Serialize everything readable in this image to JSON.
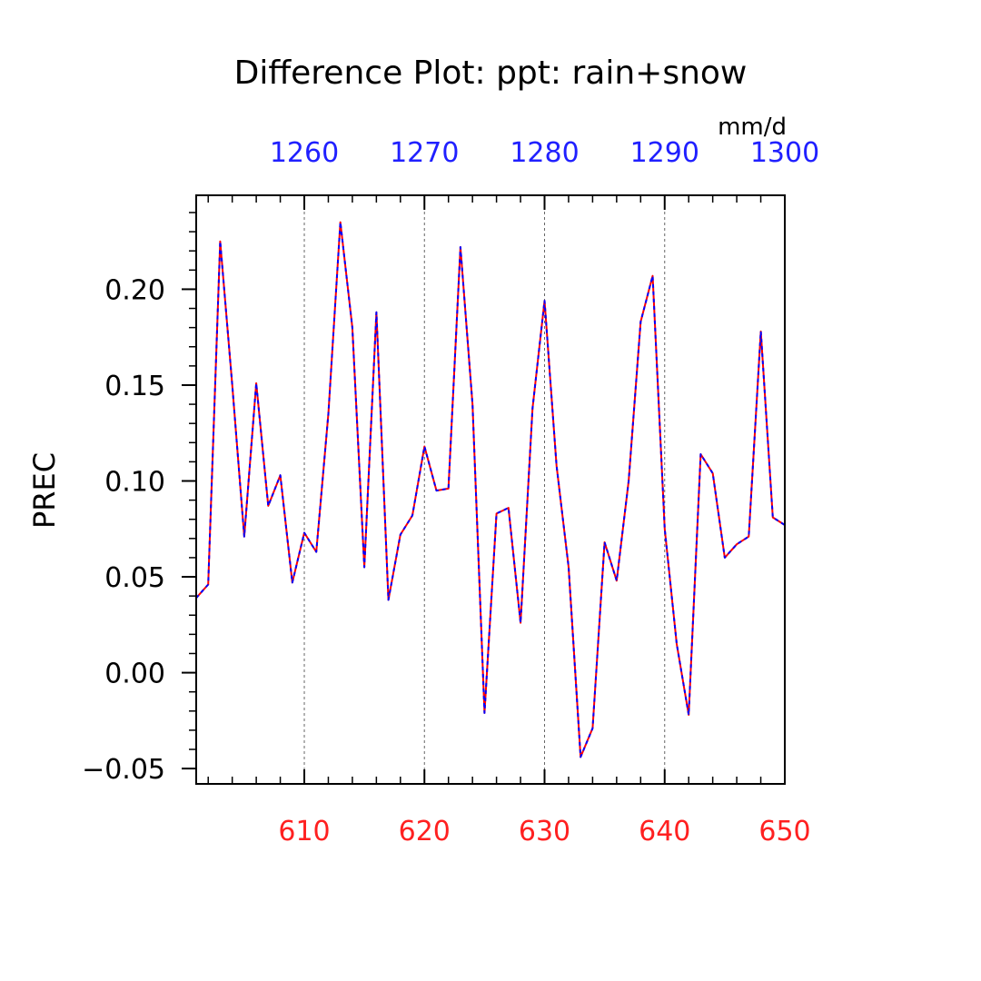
{
  "chart_data": {
    "type": "line",
    "title": "Difference Plot: ppt: rain+snow",
    "units": "mm/d",
    "ylabel": "PREC",
    "xlabel": "",
    "xlim": [
      601,
      650
    ],
    "ylim": [
      -0.058,
      0.249
    ],
    "x_ticks": [
      610,
      620,
      630,
      640,
      650
    ],
    "x_tick_labels": [
      "610",
      "620",
      "630",
      "640",
      "650"
    ],
    "top_x_ticks": [
      1260,
      1270,
      1280,
      1290,
      1300
    ],
    "top_x_tick_labels": [
      "1260",
      "1270",
      "1280",
      "1290",
      "1300"
    ],
    "y_ticks": [
      -0.05,
      0,
      0.05,
      0.1,
      0.15,
      0.2
    ],
    "y_tick_labels": [
      "−0.05",
      "0.00",
      "0.05",
      "0.10",
      "0.15",
      "0.20"
    ],
    "vertical_grid": "dashed at major x ticks",
    "x": [
      601,
      602,
      603,
      604,
      605,
      606,
      607,
      608,
      609,
      610,
      611,
      612,
      613,
      614,
      615,
      616,
      617,
      618,
      619,
      620,
      621,
      622,
      623,
      624,
      625,
      626,
      627,
      628,
      629,
      630,
      631,
      632,
      633,
      634,
      635,
      636,
      637,
      638,
      639,
      640,
      641,
      642,
      643,
      644,
      645,
      646,
      647,
      648,
      649,
      650
    ],
    "series": [
      {
        "color": "#ff0000",
        "style": "solid",
        "values": [
          0.039,
          0.046,
          0.225,
          0.15,
          0.071,
          0.151,
          0.087,
          0.103,
          0.047,
          0.073,
          0.063,
          0.135,
          0.235,
          0.18,
          0.055,
          0.188,
          0.038,
          0.072,
          0.082,
          0.118,
          0.095,
          0.096,
          0.222,
          0.14,
          -0.021,
          0.083,
          0.086,
          0.026,
          0.138,
          0.194,
          0.108,
          0.055,
          -0.044,
          -0.029,
          0.068,
          0.048,
          0.1,
          0.183,
          0.207,
          0.075,
          0.015,
          -0.022,
          0.114,
          0.104,
          0.06,
          0.067,
          0.071,
          0.178,
          0.081,
          0.077
        ]
      },
      {
        "color": "#0000ff",
        "style": "dashed",
        "values": [
          0.039,
          0.046,
          0.225,
          0.15,
          0.071,
          0.151,
          0.087,
          0.103,
          0.047,
          0.073,
          0.063,
          0.135,
          0.235,
          0.18,
          0.055,
          0.188,
          0.038,
          0.072,
          0.082,
          0.118,
          0.095,
          0.096,
          0.222,
          0.14,
          -0.021,
          0.083,
          0.086,
          0.026,
          0.138,
          0.194,
          0.108,
          0.055,
          -0.044,
          -0.029,
          0.068,
          0.048,
          0.1,
          0.183,
          0.207,
          0.075,
          0.015,
          -0.022,
          0.114,
          0.104,
          0.06,
          0.067,
          0.071,
          0.178,
          0.081,
          0.077
        ]
      }
    ],
    "colors": {
      "bottom_axis_labels": "#ff2020",
      "top_axis_labels": "#2020ff",
      "text": "#000000",
      "grid": "#666666"
    }
  }
}
